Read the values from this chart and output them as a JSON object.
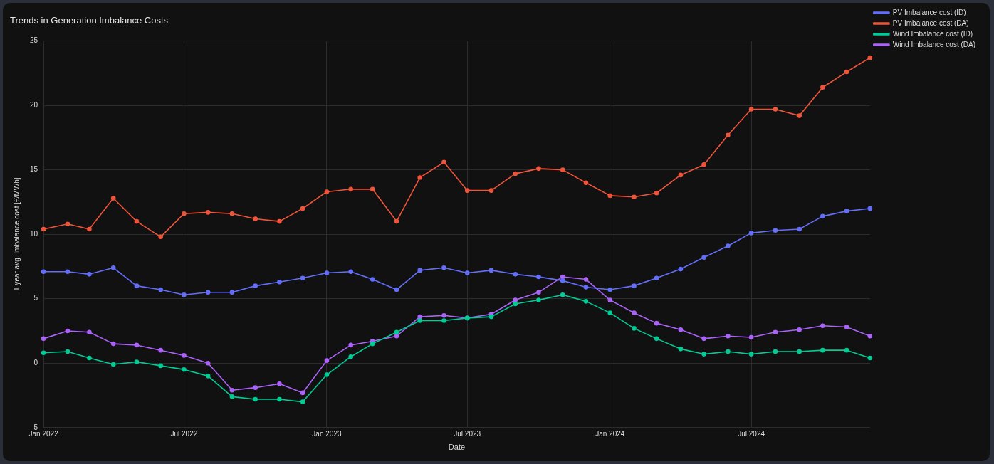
{
  "chart_data": {
    "type": "line",
    "title": "Trends in Generation Imbalance Costs",
    "xlabel": "Date",
    "ylabel": "1 year avg. Imbalance cost [€/MWh]",
    "x": [
      "2022-01",
      "2022-02",
      "2022-03",
      "2022-04",
      "2022-05",
      "2022-06",
      "2022-07",
      "2022-08",
      "2022-09",
      "2022-10",
      "2022-11",
      "2022-12",
      "2023-01",
      "2023-02",
      "2023-03",
      "2023-04",
      "2023-05",
      "2023-06",
      "2023-07",
      "2023-08",
      "2023-09",
      "2023-10",
      "2023-11",
      "2023-12",
      "2024-01",
      "2024-02",
      "2024-03",
      "2024-04",
      "2024-05",
      "2024-06",
      "2024-07",
      "2024-08",
      "2024-09",
      "2024-10",
      "2024-11",
      "2024-12"
    ],
    "series": [
      {
        "name": "PV Imbalance cost (ID)",
        "color": "#636efa",
        "values": [
          7.1,
          7.1,
          6.9,
          7.4,
          6.0,
          5.7,
          5.3,
          5.5,
          5.5,
          6.0,
          6.3,
          6.6,
          7.0,
          7.1,
          6.5,
          5.7,
          7.2,
          7.4,
          7.0,
          7.2,
          6.9,
          6.7,
          6.4,
          5.9,
          5.7,
          6.0,
          6.6,
          7.3,
          8.2,
          9.1,
          10.1,
          10.3,
          10.4,
          11.4,
          11.8,
          12.0
        ]
      },
      {
        "name": "PV Imbalance cost (DA)",
        "color": "#ef553b",
        "values": [
          10.4,
          10.8,
          10.4,
          12.8,
          11.0,
          9.8,
          11.6,
          11.7,
          11.6,
          11.2,
          11.0,
          12.0,
          13.3,
          13.5,
          13.5,
          11.0,
          14.4,
          15.6,
          13.4,
          13.4,
          14.7,
          15.1,
          15.0,
          14.0,
          13.0,
          12.9,
          13.2,
          14.6,
          15.4,
          17.7,
          19.7,
          19.7,
          19.2,
          21.4,
          22.6,
          23.7
        ]
      },
      {
        "name": "Wind Imbalance cost (ID)",
        "color": "#00cc96",
        "values": [
          0.8,
          0.9,
          0.4,
          -0.1,
          0.1,
          -0.2,
          -0.5,
          -1.0,
          -2.6,
          -2.8,
          -2.8,
          -3.0,
          -0.9,
          0.5,
          1.5,
          2.4,
          3.3,
          3.3,
          3.5,
          3.6,
          4.6,
          4.9,
          5.3,
          4.8,
          3.9,
          2.7,
          1.9,
          1.1,
          0.7,
          0.9,
          0.7,
          0.9,
          0.9,
          1.0,
          1.0,
          0.4
        ]
      },
      {
        "name": "Wind Imbalance cost (DA)",
        "color": "#ab63fa",
        "values": [
          1.9,
          2.5,
          2.4,
          1.5,
          1.4,
          1.0,
          0.6,
          0.0,
          -2.1,
          -1.9,
          -1.6,
          -2.3,
          0.2,
          1.4,
          1.7,
          2.1,
          3.6,
          3.7,
          3.5,
          3.8,
          4.9,
          5.5,
          6.7,
          6.5,
          4.9,
          3.9,
          3.1,
          2.6,
          1.9,
          2.1,
          2.0,
          2.4,
          2.6,
          2.9,
          2.8,
          2.1
        ]
      }
    ],
    "xlim": [
      "2022-01",
      "2024-12"
    ],
    "xticks": [
      {
        "value": "2022-01",
        "label": "Jan 2022"
      },
      {
        "value": "2022-07",
        "label": "Jul 2022"
      },
      {
        "value": "2023-01",
        "label": "Jan 2023"
      },
      {
        "value": "2023-07",
        "label": "Jul 2023"
      },
      {
        "value": "2024-01",
        "label": "Jan 2024"
      },
      {
        "value": "2024-07",
        "label": "Jul 2024"
      }
    ],
    "ylim": [
      -5,
      25
    ],
    "yticks": [
      -5,
      0,
      5,
      10,
      15,
      20,
      25
    ],
    "grid": true,
    "legend": "top right",
    "marker": "circle",
    "line_style": "solid"
  }
}
